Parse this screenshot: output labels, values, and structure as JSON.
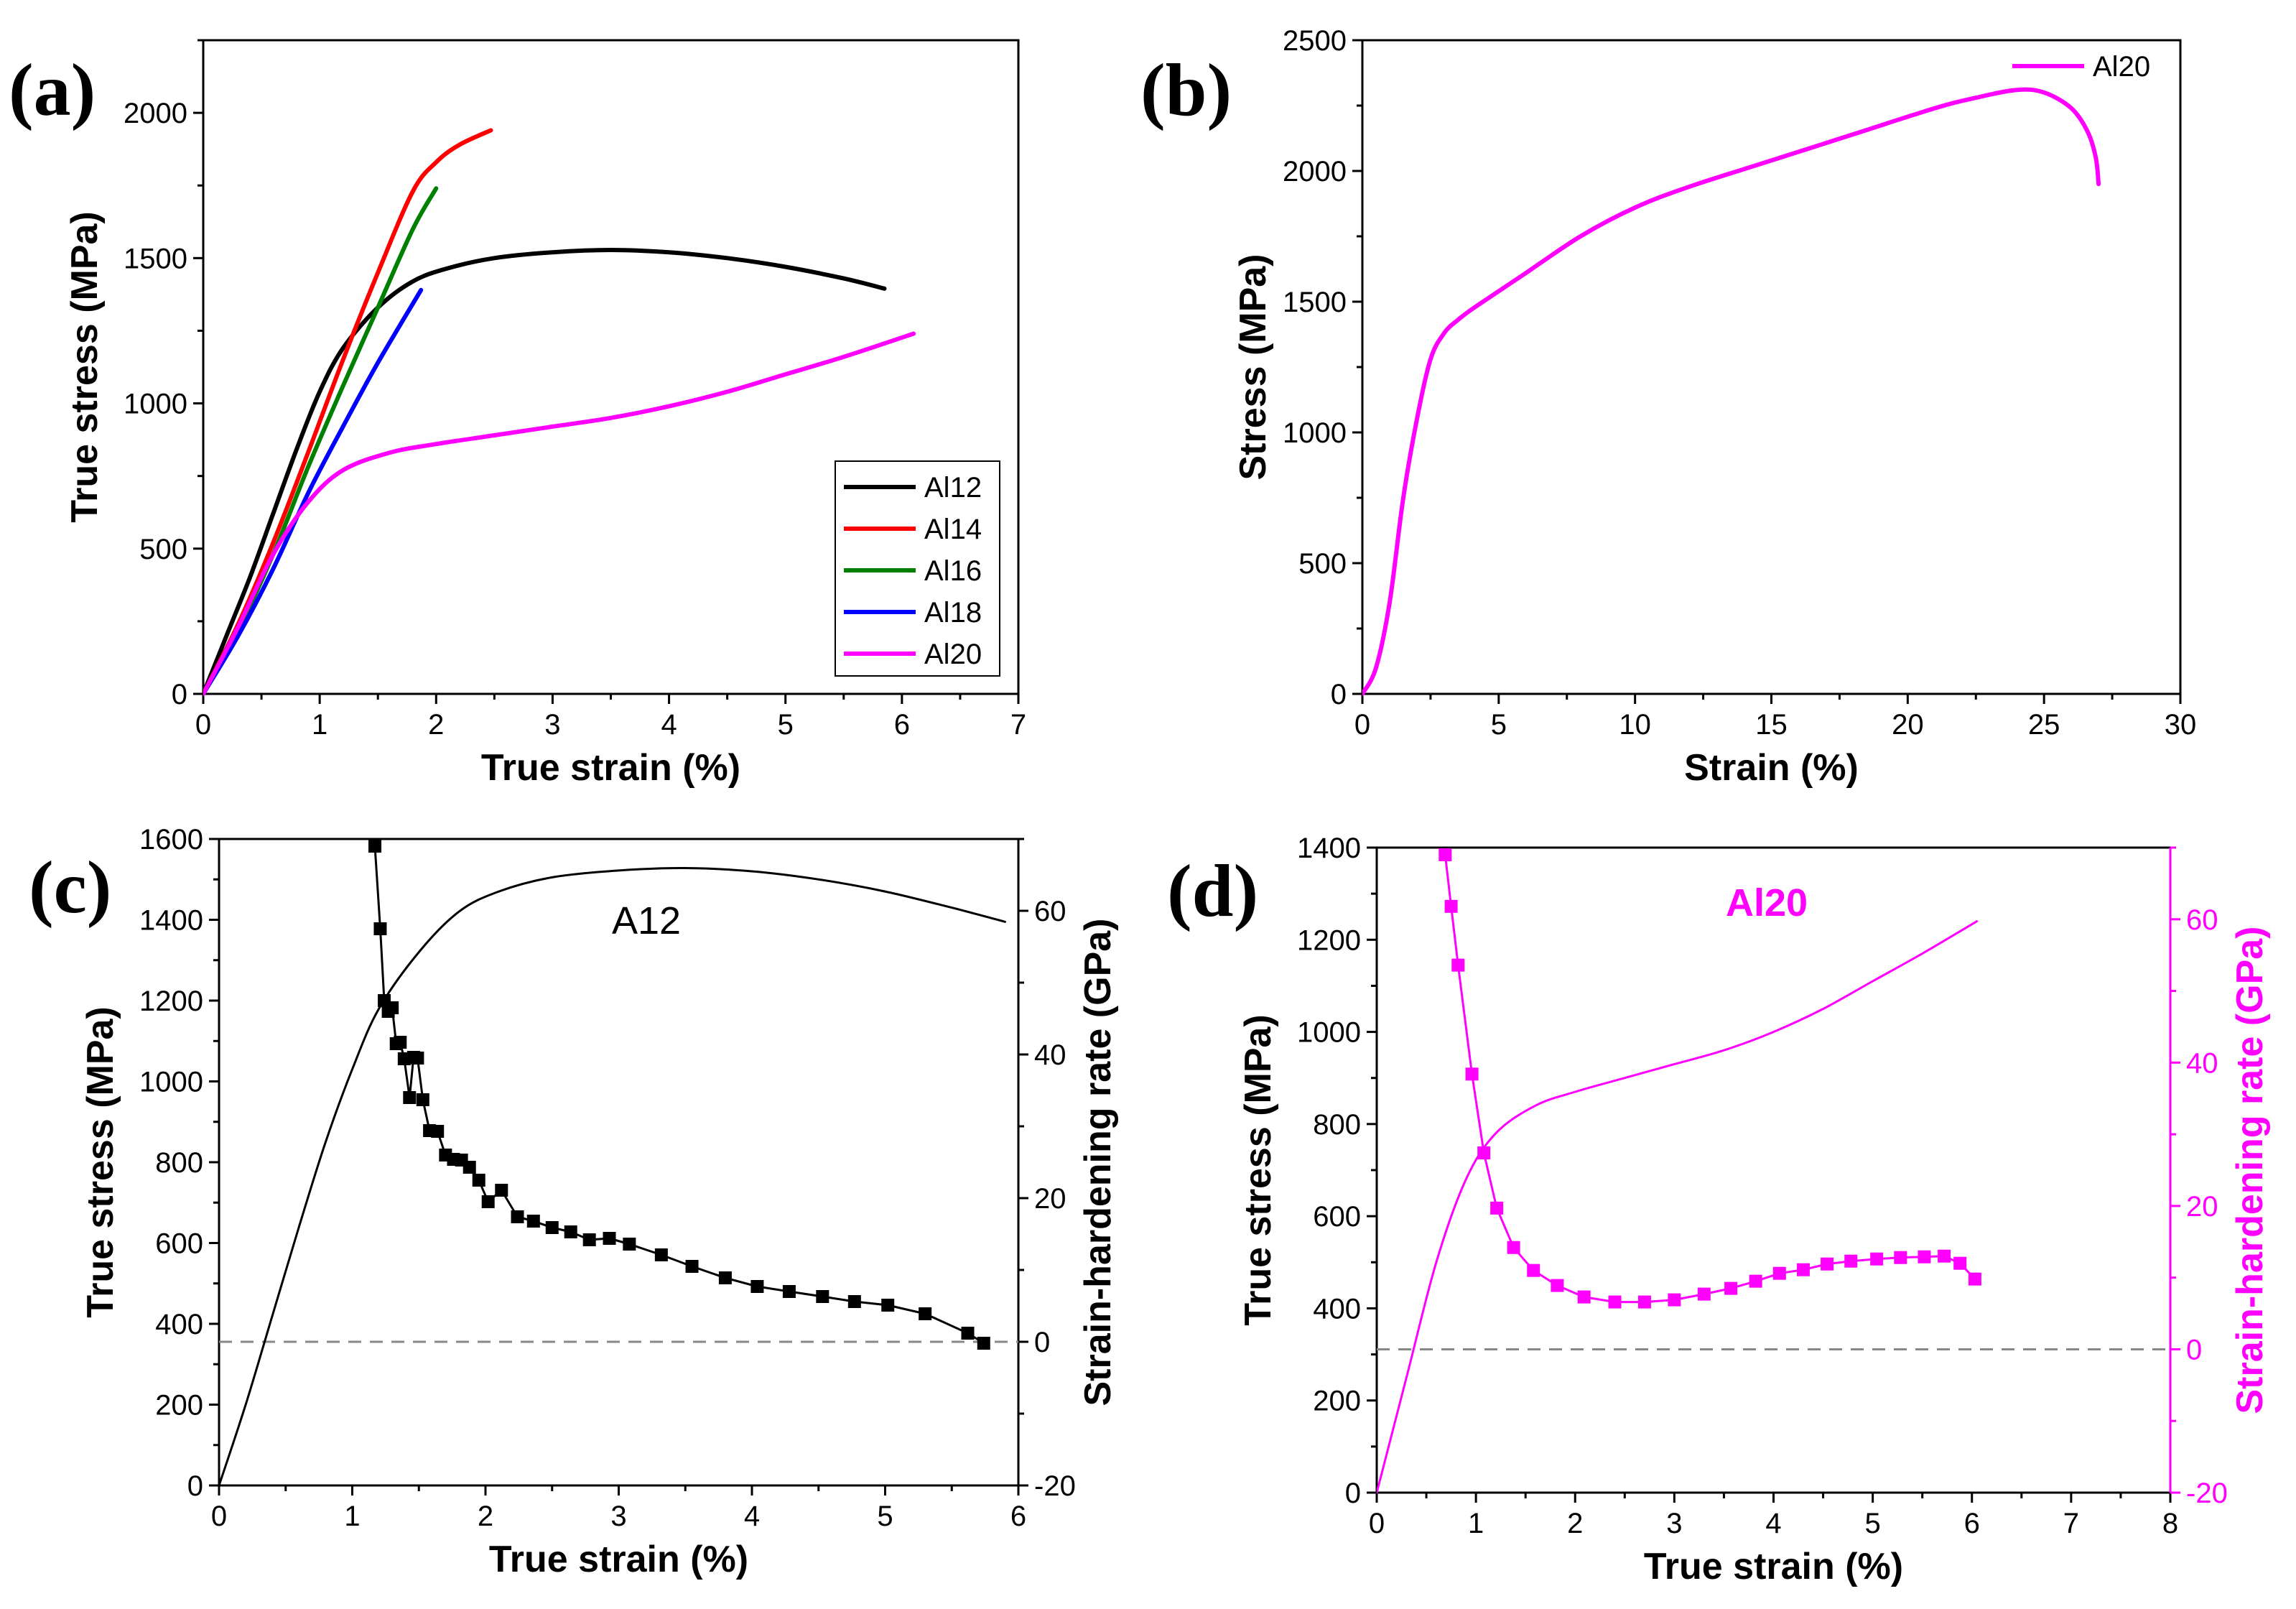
{
  "chart_data": [
    {
      "id": "a",
      "type": "line",
      "panel_label": "(a)",
      "xlabel": "True strain (%)",
      "ylabel": "True stress (MPa)",
      "xlim": [
        0,
        7
      ],
      "ylim": [
        0,
        2250
      ],
      "xticks": [
        0,
        1,
        2,
        3,
        4,
        5,
        6,
        7
      ],
      "yticks": [
        0,
        500,
        1000,
        1500,
        2000
      ],
      "legend_position": "bottom-right",
      "series": [
        {
          "name": "Al12",
          "color": "#000000",
          "x": [
            0,
            0.2,
            0.4,
            0.6,
            0.8,
            1.0,
            1.2,
            1.5,
            1.8,
            2.1,
            2.5,
            3.0,
            3.5,
            4.0,
            4.5,
            5.0,
            5.5,
            5.85
          ],
          "y": [
            0,
            200,
            400,
            620,
            840,
            1040,
            1190,
            1330,
            1420,
            1465,
            1500,
            1520,
            1528,
            1520,
            1500,
            1470,
            1430,
            1395
          ]
        },
        {
          "name": "Al14",
          "color": "#ff0000",
          "x": [
            0,
            0.3,
            0.6,
            0.9,
            1.2,
            1.5,
            1.8,
            2.0,
            2.2,
            2.47
          ],
          "y": [
            0,
            240,
            520,
            830,
            1150,
            1450,
            1730,
            1830,
            1890,
            1940
          ]
        },
        {
          "name": "Al16",
          "color": "#008000",
          "x": [
            0,
            0.3,
            0.6,
            0.9,
            1.2,
            1.5,
            1.8,
            2.0
          ],
          "y": [
            0,
            220,
            480,
            780,
            1060,
            1330,
            1600,
            1740
          ]
        },
        {
          "name": "Al18",
          "color": "#0000ff",
          "x": [
            0,
            0.3,
            0.6,
            0.9,
            1.2,
            1.5,
            1.87
          ],
          "y": [
            0,
            200,
            430,
            690,
            920,
            1140,
            1390
          ]
        },
        {
          "name": "Al20",
          "color": "#ff00ff",
          "x": [
            0,
            0.3,
            0.6,
            0.9,
            1.2,
            1.6,
            2.0,
            2.5,
            3.0,
            3.5,
            4.0,
            4.5,
            5.0,
            5.5,
            6.1
          ],
          "y": [
            0,
            230,
            480,
            660,
            770,
            830,
            860,
            890,
            920,
            950,
            990,
            1040,
            1100,
            1160,
            1240
          ]
        }
      ]
    },
    {
      "id": "b",
      "type": "line",
      "panel_label": "(b)",
      "xlabel": "Strain (%)",
      "ylabel": "Stress (MPa)",
      "xlim": [
        0,
        30
      ],
      "ylim": [
        0,
        2500
      ],
      "xticks": [
        0,
        5,
        10,
        15,
        20,
        25,
        30
      ],
      "yticks": [
        0,
        500,
        1000,
        1500,
        2000,
        2500
      ],
      "legend_position": "top-right",
      "series": [
        {
          "name": "Al20",
          "color": "#ff00ff",
          "x": [
            0,
            0.5,
            1.0,
            1.5,
            2.0,
            2.5,
            3.0,
            3.5,
            4.0,
            5.0,
            6.0,
            8.0,
            10.0,
            12.0,
            15.0,
            18.0,
            21.0,
            22.5,
            24.0,
            25.0,
            26.0,
            26.6,
            26.9,
            27.0
          ],
          "y": [
            0,
            100,
            350,
            750,
            1050,
            1280,
            1380,
            1430,
            1470,
            1540,
            1610,
            1750,
            1860,
            1940,
            2040,
            2140,
            2240,
            2280,
            2310,
            2300,
            2240,
            2150,
            2050,
            1950
          ]
        }
      ]
    },
    {
      "id": "c",
      "type": "line",
      "panel_label": "(c)",
      "annotation": "A12",
      "xlabel": "True strain (%)",
      "ylabel": "True stress (MPa)",
      "y2label": "Strain-hardening rate (GPa)",
      "xlim": [
        0,
        6
      ],
      "ylim": [
        0,
        1600
      ],
      "y2lim": [
        -20,
        70
      ],
      "xticks": [
        0,
        1,
        2,
        3,
        4,
        5,
        6
      ],
      "yticks": [
        0,
        200,
        400,
        600,
        800,
        1000,
        1200,
        1400,
        1600
      ],
      "y2ticks": [
        -20,
        0,
        20,
        40,
        60
      ],
      "y2_zero_line": 0,
      "series": [
        {
          "name": "True stress",
          "axis": "left",
          "color": "#000000",
          "markers": false,
          "x": [
            0,
            0.2,
            0.4,
            0.6,
            0.8,
            1.0,
            1.2,
            1.5,
            1.8,
            2.1,
            2.5,
            3.0,
            3.5,
            4.0,
            4.5,
            5.0,
            5.5,
            5.9
          ],
          "y": [
            0,
            200,
            420,
            640,
            850,
            1030,
            1180,
            1320,
            1420,
            1470,
            1505,
            1522,
            1528,
            1520,
            1500,
            1470,
            1430,
            1395
          ]
        },
        {
          "name": "Strain-hardening rate",
          "axis": "right",
          "color": "#000000",
          "markers": true,
          "x": [
            1.17,
            1.21,
            1.24,
            1.27,
            1.3,
            1.33,
            1.36,
            1.39,
            1.43,
            1.46,
            1.49,
            1.53,
            1.58,
            1.64,
            1.7,
            1.76,
            1.82,
            1.88,
            1.95,
            2.02,
            2.12,
            2.24,
            2.36,
            2.5,
            2.64,
            2.78,
            2.93,
            3.08,
            3.32,
            3.55,
            3.8,
            4.04,
            4.28,
            4.53,
            4.77,
            5.02,
            5.3,
            5.62,
            5.74
          ],
          "y": [
            69,
            57.5,
            47.5,
            46.0,
            46.5,
            41.5,
            41.7,
            39.4,
            34.0,
            39.6,
            39.5,
            33.7,
            29.4,
            29.3,
            26.0,
            25.4,
            25.3,
            24.3,
            22.5,
            19.5,
            21.1,
            17.4,
            16.8,
            15.9,
            15.3,
            14.2,
            14.4,
            13.6,
            12.1,
            10.5,
            8.9,
            7.7,
            7.0,
            6.3,
            5.6,
            5.1,
            3.9,
            1.2,
            -0.2
          ]
        }
      ]
    },
    {
      "id": "d",
      "type": "line",
      "panel_label": "(d)",
      "annotation": "Al20",
      "xlabel": "True strain (%)",
      "ylabel": "True stress (MPa)",
      "y2label": "Strain-hardening rate (GPa)",
      "xlim": [
        0,
        8
      ],
      "ylim": [
        0,
        1400
      ],
      "y2lim": [
        -20,
        70
      ],
      "xticks": [
        0,
        1,
        2,
        3,
        4,
        5,
        6,
        7,
        8
      ],
      "yticks": [
        0,
        200,
        400,
        600,
        800,
        1000,
        1200,
        1400
      ],
      "y2ticks": [
        -20,
        0,
        20,
        40,
        60
      ],
      "y2_zero_line": 0,
      "series": [
        {
          "name": "True stress",
          "axis": "left",
          "color": "#ff00ff",
          "markers": false,
          "x": [
            0,
            0.3,
            0.6,
            0.9,
            1.2,
            1.6,
            2.0,
            2.5,
            3.0,
            3.5,
            4.0,
            4.5,
            5.0,
            5.5,
            6.05
          ],
          "y": [
            0,
            250,
            500,
            680,
            780,
            840,
            870,
            900,
            930,
            960,
            1000,
            1050,
            1110,
            1170,
            1240
          ]
        },
        {
          "name": "Strain-hardening rate",
          "axis": "right",
          "color": "#ff00ff",
          "markers": true,
          "x": [
            0.69,
            0.75,
            0.82,
            0.96,
            1.08,
            1.21,
            1.38,
            1.58,
            1.82,
            2.09,
            2.4,
            2.7,
            3.0,
            3.3,
            3.57,
            3.82,
            4.06,
            4.3,
            4.54,
            4.78,
            5.04,
            5.28,
            5.52,
            5.72,
            5.88,
            6.03
          ],
          "y": [
            69,
            61.8,
            53.6,
            38.4,
            27.4,
            19.7,
            14.2,
            11.0,
            8.9,
            7.3,
            6.6,
            6.6,
            6.9,
            7.7,
            8.5,
            9.5,
            10.6,
            11.1,
            11.9,
            12.3,
            12.6,
            12.8,
            12.9,
            13.0,
            12.0,
            9.8
          ]
        }
      ]
    }
  ]
}
